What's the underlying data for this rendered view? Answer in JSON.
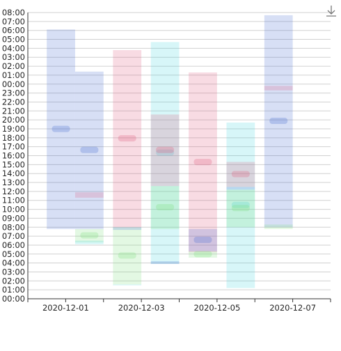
{
  "toolbar": {
    "download_icon": "download-icon"
  },
  "chart_data": {
    "type": "bar",
    "subtype": "floating-range",
    "title": "",
    "xlabel": "",
    "ylabel": "",
    "x_ticks": [
      "2020-12-01",
      "2020-12-03",
      "2020-12-05",
      "2020-12-07"
    ],
    "y_ticks": [
      "00:00",
      "01:00",
      "02:00",
      "03:00",
      "04:00",
      "05:00",
      "06:00",
      "07:00",
      "08:00",
      "09:00",
      "10:00",
      "11:00",
      "12:00",
      "13:00",
      "14:00",
      "15:00",
      "16:00",
      "17:00",
      "18:00",
      "19:00",
      "20:00",
      "21:00",
      "22:00",
      "23:00",
      "00:00",
      "01:00",
      "02:00",
      "03:00",
      "04:00",
      "05:00",
      "06:00",
      "07:00",
      "08:00"
    ],
    "ylim_hours": [
      0,
      32
    ],
    "xlim_days": [
      "2020-11-30",
      "2020-12-08"
    ],
    "grid": true,
    "legend": "none",
    "bar_label_legibility": "labels are drawn but unreadable (small and blurred)",
    "series": [
      {
        "color": "#4a6fd0",
        "start_date": "2020-11-30T12:00",
        "end_date": "2020-12-01T06:00",
        "start_hour": 7.8,
        "end_hour": 30.1
      },
      {
        "color": "#4a6fd0",
        "start_date": "2020-12-01T06:00",
        "end_date": "2020-12-02T00:00",
        "start_hour": 7.8,
        "end_hour": 25.4
      },
      {
        "color": "#e05c7e",
        "start_date": "2020-12-01T06:00",
        "end_date": "2020-12-02T00:00",
        "start_hour": 11.3,
        "end_hour": 11.9
      },
      {
        "color": "#7ee07e",
        "start_date": "2020-12-01T06:00",
        "end_date": "2020-12-02T00:00",
        "start_hour": 6.3,
        "end_hour": 7.8
      },
      {
        "color": "#4ad4e0",
        "start_date": "2020-12-01T06:00",
        "end_date": "2020-12-02T00:00",
        "start_hour": 6.1,
        "end_hour": 6.5
      },
      {
        "color": "#e05c7e",
        "start_date": "2020-12-02T06:00",
        "end_date": "2020-12-03T00:00",
        "start_hour": 8.0,
        "end_hour": 27.8
      },
      {
        "color": "#7ee07e",
        "start_date": "2020-12-02T06:00",
        "end_date": "2020-12-03T00:00",
        "start_hour": 1.6,
        "end_hour": 8.0
      },
      {
        "color": "#4ad4e0",
        "start_date": "2020-12-02T06:00",
        "end_date": "2020-12-03T00:00",
        "start_hour": 1.5,
        "end_hour": 1.6
      },
      {
        "color": "#4a6fd0",
        "start_date": "2020-12-02T06:00",
        "end_date": "2020-12-03T00:00",
        "start_hour": 7.7,
        "end_hour": 8.0
      },
      {
        "color": "#4ad4e0",
        "start_date": "2020-12-03T06:00",
        "end_date": "2020-12-04T00:00",
        "start_hour": 3.9,
        "end_hour": 28.7
      },
      {
        "color": "#e05c7e",
        "start_date": "2020-12-03T06:00",
        "end_date": "2020-12-04T00:00",
        "start_hour": 12.6,
        "end_hour": 20.6
      },
      {
        "color": "#7ee07e",
        "start_date": "2020-12-03T06:00",
        "end_date": "2020-12-04T00:00",
        "start_hour": 7.8,
        "end_hour": 12.6
      },
      {
        "color": "#4a6fd0",
        "start_date": "2020-12-03T06:00",
        "end_date": "2020-12-04T00:00",
        "start_hour": 3.9,
        "end_hour": 4.2
      },
      {
        "color": "#e05c7e",
        "start_date": "2020-12-04T06:00",
        "end_date": "2020-12-05T00:00",
        "start_hour": 5.2,
        "end_hour": 25.3
      },
      {
        "color": "#4a6fd0",
        "start_date": "2020-12-04T06:00",
        "end_date": "2020-12-05T00:00",
        "start_hour": 5.3,
        "end_hour": 7.8
      },
      {
        "color": "#7ee07e",
        "start_date": "2020-12-04T06:00",
        "end_date": "2020-12-05T00:00",
        "start_hour": 4.6,
        "end_hour": 5.3
      },
      {
        "color": "#4ad4e0",
        "start_date": "2020-12-05T06:00",
        "end_date": "2020-12-06T00:00",
        "start_hour": 1.2,
        "end_hour": 19.7
      },
      {
        "color": "#e05c7e",
        "start_date": "2020-12-05T06:00",
        "end_date": "2020-12-06T00:00",
        "start_hour": 12.5,
        "end_hour": 15.3
      },
      {
        "color": "#4a6fd0",
        "start_date": "2020-12-05T06:00",
        "end_date": "2020-12-06T00:00",
        "start_hour": 12.2,
        "end_hour": 12.5
      },
      {
        "color": "#7ee07e",
        "start_date": "2020-12-05T06:00",
        "end_date": "2020-12-06T00:00",
        "start_hour": 8.0,
        "end_hour": 12.2
      },
      {
        "color": "#4a6fd0",
        "start_date": "2020-12-06T06:00",
        "end_date": "2020-12-07T00:00",
        "start_hour": 8.0,
        "end_hour": 31.7
      },
      {
        "color": "#e05c7e",
        "start_date": "2020-12-06T06:00",
        "end_date": "2020-12-07T00:00",
        "start_hour": 23.3,
        "end_hour": 23.8
      },
      {
        "color": "#7ee07e",
        "start_date": "2020-12-06T06:00",
        "end_date": "2020-12-07T00:00",
        "start_hour": 7.8,
        "end_hour": 8.3
      }
    ]
  }
}
